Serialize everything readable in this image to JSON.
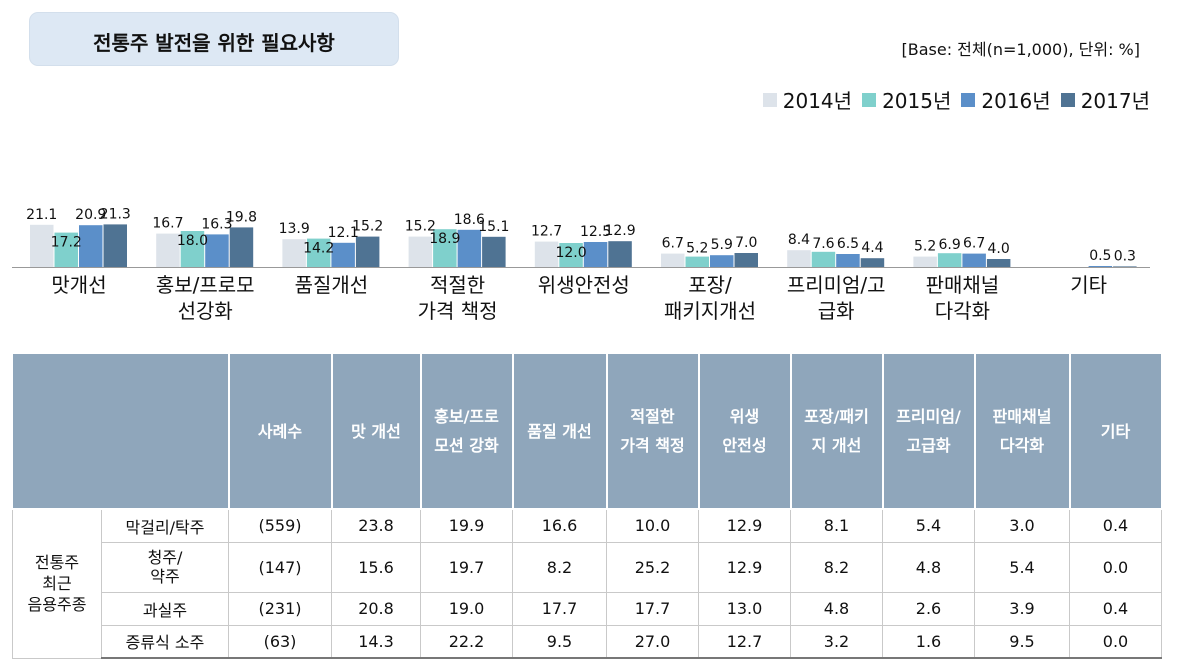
{
  "title": "전통주 발전을 위한 필요사항",
  "base_note": "[Base: 전체(n=1,000), 단위: %]",
  "legend": [
    {
      "label": "2014년",
      "color": "#dde3ea"
    },
    {
      "label": "2015년",
      "color": "#7fd0cc"
    },
    {
      "label": "2016년",
      "color": "#5b8fc9"
    },
    {
      "label": "2017년",
      "color": "#4f7393"
    }
  ],
  "chart_data": {
    "type": "bar",
    "categories": [
      "맛개선",
      "홍보/프로모\n선강화",
      "품질개선",
      "적절한\n가격 책정",
      "위생안전성",
      "포장/\n패키지개선",
      "프리미엄/고\n급화",
      "판매채널\n다각화",
      "기타"
    ],
    "series": [
      {
        "name": "2014년",
        "values": [
          21.1,
          16.7,
          13.9,
          15.2,
          12.7,
          6.7,
          8.4,
          5.2,
          null
        ]
      },
      {
        "name": "2015년",
        "values": [
          17.2,
          18.0,
          14.2,
          18.9,
          12.0,
          5.2,
          7.6,
          6.9,
          null
        ]
      },
      {
        "name": "2016년",
        "values": [
          20.9,
          16.3,
          12.1,
          18.6,
          12.5,
          5.9,
          6.5,
          6.7,
          0.5
        ]
      },
      {
        "name": "2017년",
        "values": [
          21.3,
          19.8,
          15.2,
          15.1,
          12.9,
          7.0,
          4.4,
          4.0,
          0.3
        ]
      }
    ],
    "value_labels": [
      [
        "21.1",
        "17.2",
        "20.9",
        "21.3"
      ],
      [
        "16.7",
        "18.0",
        "16.3",
        "19.8"
      ],
      [
        "13.9",
        "14.2",
        "12.1",
        "15.2"
      ],
      [
        "15.2",
        "18.9",
        "18.6",
        "15.1"
      ],
      [
        "12.7",
        "12.0",
        "12.5",
        "12.9"
      ],
      [
        "6.7",
        "5.2",
        "5.9",
        "7.0"
      ],
      [
        "8.4",
        "7.6",
        "6.5",
        "4.4"
      ],
      [
        "5.2",
        "6.9",
        "6.7",
        "4.0"
      ],
      [
        null,
        null,
        "0.5",
        "0.3"
      ]
    ],
    "ylim": [
      0,
      25
    ]
  },
  "table": {
    "headers": [
      "사례수",
      "맛 개선",
      "홍보/프로\n모션 강화",
      "품질 개선",
      "적절한\n가격 책정",
      "위생\n안전성",
      "포장/패키\n지 개선",
      "프리미엄/\n고급화",
      "판매채널\n다각화",
      "기타"
    ],
    "group_label": "전통주\n최근\n음용주종",
    "rows": [
      {
        "name": "막걸리/탁주",
        "n": "(559)",
        "values": [
          "23.8",
          "19.9",
          "16.6",
          "10.0",
          "12.9",
          "8.1",
          "5.4",
          "3.0",
          "0.4"
        ]
      },
      {
        "name": "청주/\n약주",
        "n": "(147)",
        "values": [
          "15.6",
          "19.7",
          "8.2",
          "25.2",
          "12.9",
          "8.2",
          "4.8",
          "5.4",
          "0.0"
        ]
      },
      {
        "name": "과실주",
        "n": "(231)",
        "values": [
          "20.8",
          "19.0",
          "17.7",
          "17.7",
          "13.0",
          "4.8",
          "2.6",
          "3.9",
          "0.4"
        ]
      },
      {
        "name": "증류식 소주",
        "n": "(63)",
        "values": [
          "14.3",
          "22.2",
          "9.5",
          "27.0",
          "12.7",
          "3.2",
          "1.6",
          "9.5",
          "0.0"
        ]
      }
    ]
  }
}
